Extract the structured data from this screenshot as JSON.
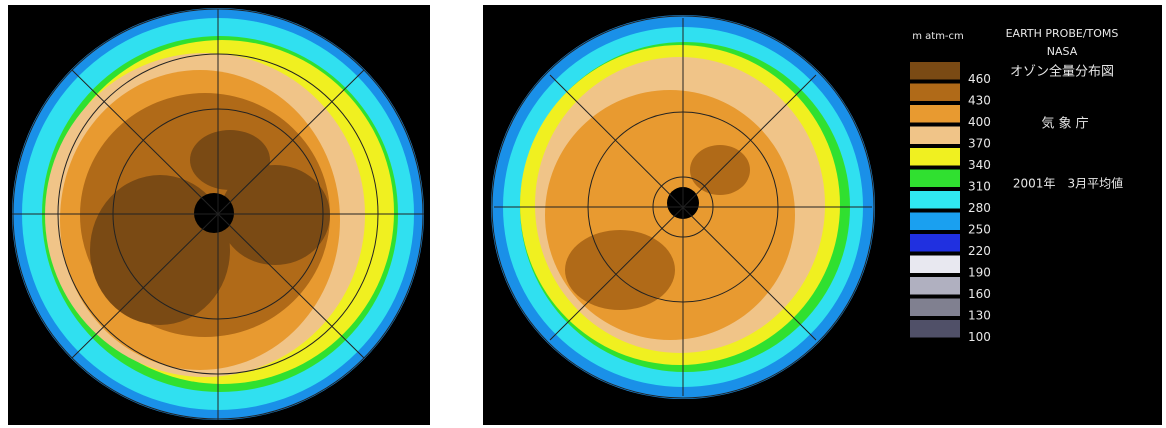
{
  "legend": {
    "unit": "m atm-cm",
    "levels": [
      {
        "label": "460",
        "color": "#7a4a14"
      },
      {
        "label": "430",
        "color": "#b06a18"
      },
      {
        "label": "400",
        "color": "#e89a30"
      },
      {
        "label": "370",
        "color": "#f0c488"
      },
      {
        "label": "340",
        "color": "#f0f020"
      },
      {
        "label": "310",
        "color": "#30e030"
      },
      {
        "label": "280",
        "color": "#30e8f0"
      },
      {
        "label": "250",
        "color": "#1aa0f0"
      },
      {
        "label": "220",
        "color": "#2030e0"
      },
      {
        "label": "190",
        "color": "#e8e8f0"
      },
      {
        "label": "160",
        "color": "#b0b0c0"
      },
      {
        "label": "130",
        "color": "#808090"
      },
      {
        "label": "100",
        "color": "#505068"
      }
    ]
  },
  "info": {
    "source": "EARTH PROBE/TOMS",
    "agency": "NASA",
    "title": "オゾン全量分布図",
    "office": "気 象 庁",
    "period": "2001年　3月平均値"
  }
}
